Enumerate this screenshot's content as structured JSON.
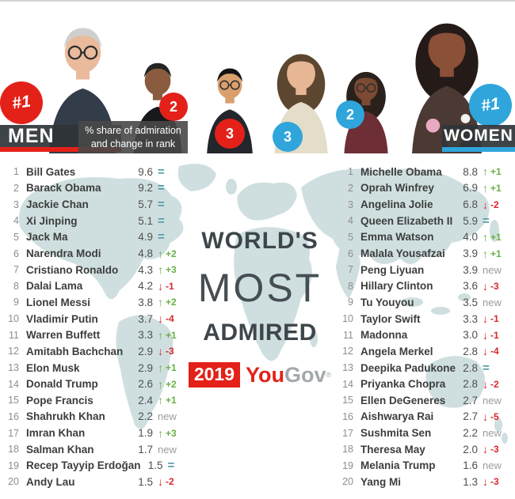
{
  "colors": {
    "accent_red": "#e32119",
    "accent_blue": "#2fa5dc",
    "up_green": "#68b043",
    "down_red": "#d7282f",
    "same_teal": "#4a9ba3",
    "new_gray": "#9b9b9b",
    "map_fill": "#cfdfe0"
  },
  "header": {
    "men_label": "MEN",
    "women_label": "WOMEN",
    "info_line1": "% share of admiration",
    "info_line2": "and change in rank",
    "people": [
      {
        "id": "bill-gates",
        "badge": "#1",
        "badge_color": "red",
        "big": true,
        "hair": "#cfcfcf",
        "skin": "#e9bb9c",
        "cloth": "#333c49",
        "long": false,
        "glasses": true
      },
      {
        "id": "barack-obama",
        "badge": "2",
        "badge_color": "red",
        "big": false,
        "hair": "#242424",
        "skin": "#8a5b3e",
        "cloth": "#17191d",
        "long": false,
        "glasses": false
      },
      {
        "id": "jackie-chan",
        "badge": "3",
        "badge_color": "red",
        "big": false,
        "hair": "#121212",
        "skin": "#d9a06e",
        "cloth": "#23262b",
        "long": false,
        "glasses": true
      },
      {
        "id": "angelina-jolie",
        "badge": "3",
        "badge_color": "blue",
        "big": false,
        "hair": "#5d4630",
        "skin": "#e6b695",
        "cloth": "#e4ddca",
        "long": true,
        "glasses": false
      },
      {
        "id": "oprah-winfrey",
        "badge": "2",
        "badge_color": "blue",
        "big": false,
        "hair": "#2a211d",
        "skin": "#7c4a32",
        "cloth": "#6d2f35",
        "long": true,
        "glasses": true
      },
      {
        "id": "michelle-obama",
        "badge": "#1",
        "badge_color": "blue",
        "big": true,
        "hair": "#241a18",
        "skin": "#8a5038",
        "cloth": "#4b3a33",
        "long": true,
        "glasses": false,
        "floral": true
      }
    ]
  },
  "title": {
    "line1": "WORLD'S",
    "line2": "MOST",
    "line3": "ADMIRED",
    "year": "2019",
    "brand_you": "You",
    "brand_gov": "Gov",
    "registered": "®"
  },
  "lists": {
    "men": [
      {
        "rank": "1",
        "name": "Bill Gates",
        "value": "9.6",
        "status": "same"
      },
      {
        "rank": "2",
        "name": "Barack Obama",
        "value": "9.2",
        "status": "same"
      },
      {
        "rank": "3",
        "name": "Jackie Chan",
        "value": "5.7",
        "status": "same"
      },
      {
        "rank": "4",
        "name": "Xi Jinping",
        "value": "5.1",
        "status": "same"
      },
      {
        "rank": "5",
        "name": "Jack Ma",
        "value": "4.9",
        "status": "same"
      },
      {
        "rank": "6",
        "name": "Narendra Modi",
        "value": "4.8",
        "status": "up",
        "delta": "+2"
      },
      {
        "rank": "7",
        "name": "Cristiano Ronaldo",
        "value": "4.3",
        "status": "up",
        "delta": "+3"
      },
      {
        "rank": "8",
        "name": "Dalai Lama",
        "value": "4.2",
        "status": "down",
        "delta": "-1"
      },
      {
        "rank": "9",
        "name": "Lionel Messi",
        "value": "3.8",
        "status": "up",
        "delta": "+2"
      },
      {
        "rank": "10",
        "name": "Vladimir Putin",
        "value": "3.7",
        "status": "down",
        "delta": "-4"
      },
      {
        "rank": "11",
        "name": "Warren Buffett",
        "value": "3.3",
        "status": "up",
        "delta": "+1"
      },
      {
        "rank": "12",
        "name": "Amitabh Bachchan",
        "value": "2.9",
        "status": "down",
        "delta": "-3"
      },
      {
        "rank": "13",
        "name": "Elon Musk",
        "value": "2.9",
        "status": "up",
        "delta": "+1"
      },
      {
        "rank": "14",
        "name": "Donald Trump",
        "value": "2.6",
        "status": "up",
        "delta": "+2"
      },
      {
        "rank": "15",
        "name": "Pope Francis",
        "value": "2.4",
        "status": "up",
        "delta": "+1"
      },
      {
        "rank": "16",
        "name": "Shahrukh Khan",
        "value": "2.2",
        "status": "new"
      },
      {
        "rank": "17",
        "name": "Imran Khan",
        "value": "1.9",
        "status": "up",
        "delta": "+3"
      },
      {
        "rank": "18",
        "name": "Salman Khan",
        "value": "1.7",
        "status": "new"
      },
      {
        "rank": "19",
        "name": "Recep Tayyip Erdoğan",
        "value": "1.5",
        "status": "same"
      },
      {
        "rank": "20",
        "name": "Andy Lau",
        "value": "1.5",
        "status": "down",
        "delta": "-2"
      }
    ],
    "women": [
      {
        "rank": "1",
        "name": "Michelle Obama",
        "value": "8.8",
        "status": "up",
        "delta": "+1"
      },
      {
        "rank": "2",
        "name": "Oprah Winfrey",
        "value": "6.9",
        "status": "up",
        "delta": "+1"
      },
      {
        "rank": "3",
        "name": "Angelina Jolie",
        "value": "6.8",
        "status": "down",
        "delta": "-2"
      },
      {
        "rank": "4",
        "name": "Queen Elizabeth II",
        "value": "5.9",
        "status": "same"
      },
      {
        "rank": "5",
        "name": "Emma Watson",
        "value": "4.0",
        "status": "up",
        "delta": "+1"
      },
      {
        "rank": "6",
        "name": "Malala Yousafzai",
        "value": "3.9",
        "status": "up",
        "delta": "+1"
      },
      {
        "rank": "7",
        "name": "Peng Liyuan",
        "value": "3.9",
        "status": "new"
      },
      {
        "rank": "8",
        "name": "Hillary Clinton",
        "value": "3.6",
        "status": "down",
        "delta": "-3"
      },
      {
        "rank": "9",
        "name": "Tu Youyou",
        "value": "3.5",
        "status": "new"
      },
      {
        "rank": "10",
        "name": "Taylor Swift",
        "value": "3.3",
        "status": "down",
        "delta": "-1"
      },
      {
        "rank": "11",
        "name": "Madonna",
        "value": "3.0",
        "status": "down",
        "delta": "-1"
      },
      {
        "rank": "12",
        "name": "Angela Merkel",
        "value": "2.8",
        "status": "down",
        "delta": "-4"
      },
      {
        "rank": "13",
        "name": "Deepika Padukone",
        "value": "2.8",
        "status": "same"
      },
      {
        "rank": "14",
        "name": "Priyanka Chopra",
        "value": "2.8",
        "status": "down",
        "delta": "-2"
      },
      {
        "rank": "15",
        "name": "Ellen DeGeneres",
        "value": "2.7",
        "status": "new"
      },
      {
        "rank": "16",
        "name": "Aishwarya Rai",
        "value": "2.7",
        "status": "down",
        "delta": "-5"
      },
      {
        "rank": "17",
        "name": "Sushmita Sen",
        "value": "2.2",
        "status": "new"
      },
      {
        "rank": "18",
        "name": "Theresa May",
        "value": "2.0",
        "status": "down",
        "delta": "-3"
      },
      {
        "rank": "19",
        "name": "Melania Trump",
        "value": "1.6",
        "status": "new"
      },
      {
        "rank": "20",
        "name": "Yang Mi",
        "value": "1.3",
        "status": "down",
        "delta": "-3"
      }
    ]
  },
  "status_glyphs": {
    "up": "↑",
    "down": "↓",
    "same": "=",
    "new": "new"
  }
}
